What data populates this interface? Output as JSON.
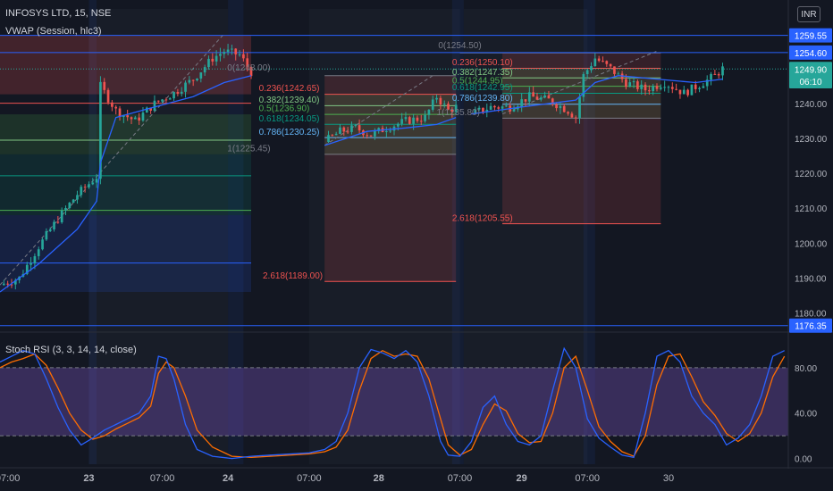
{
  "header": {
    "symbol_title": "INFOSYS LTD, 15, NSE",
    "vwap_label": "VWAP (Session, hlc3)",
    "currency": "INR"
  },
  "price_axis": {
    "ticks": [
      "1240.00",
      "1230.00",
      "1220.00",
      "1210.00",
      "1200.00",
      "1190.00",
      "1180.00"
    ],
    "badges": [
      {
        "text": "1259.55",
        "value": 1259.55,
        "color": "#2962ff",
        "text_color": "#ffffff"
      },
      {
        "text": "1254.60",
        "value": 1254.6,
        "color": "#2962ff",
        "text_color": "#ffffff"
      },
      {
        "text": "1249.90",
        "value": 1249.9,
        "color": "#26a69a",
        "text_color": "#ffffff"
      },
      {
        "text": "06:10",
        "value": 1246.4,
        "color": "#26a69a",
        "text_color": "#ffffff"
      },
      {
        "text": "1176.35",
        "value": 1176.35,
        "color": "#2962ff",
        "text_color": "#ffffff"
      }
    ]
  },
  "time_axis": {
    "labels": [
      {
        "text": "07:00",
        "bold": false
      },
      {
        "text": "23",
        "bold": true
      },
      {
        "text": "07:00",
        "bold": false
      },
      {
        "text": "24",
        "bold": true
      },
      {
        "text": "07:00",
        "bold": false
      },
      {
        "text": "28",
        "bold": true
      },
      {
        "text": "07:00",
        "bold": false
      },
      {
        "text": "29",
        "bold": true
      },
      {
        "text": "07:00",
        "bold": false
      },
      {
        "text": "30",
        "bold": false
      }
    ]
  },
  "horizontal_lines": [
    1259.55,
    1254.6,
    1176.35
  ],
  "fib_labels": [
    {
      "text": "0(1254.50)",
      "color": "#787b86"
    },
    {
      "text": "0(1248.00)",
      "color": "#787b86"
    },
    {
      "text": "0.236(1242.65)",
      "color": "#ef5350"
    },
    {
      "text": "0.382(1239.40)",
      "color": "#81c784"
    },
    {
      "text": "0.5(1236.90)",
      "color": "#4caf50"
    },
    {
      "text": "0.618(1234.05)",
      "color": "#089981"
    },
    {
      "text": "0.786(1230.25)",
      "color": "#64b5f6"
    },
    {
      "text": "1(1225.45)",
      "color": "#787b86"
    },
    {
      "text": "2.618(1189.00)",
      "color": "#ef5350"
    },
    {
      "text": "0.236(1250.10)",
      "color": "#ef5350"
    },
    {
      "text": "0.382(1247.35)",
      "color": "#81c784"
    },
    {
      "text": "0.5(1244.95)",
      "color": "#4caf50"
    },
    {
      "text": "0.618(1242.95)",
      "color": "#089981"
    },
    {
      "text": "0.786(1239.80)",
      "color": "#64b5f6"
    },
    {
      "text": "1(1235.80)",
      "color": "#787b86"
    },
    {
      "text": "2.618(1205.55)",
      "color": "#ef5350"
    }
  ],
  "stoch": {
    "label": "Stoch RSI (3, 3, 14, 14, close)",
    "ticks": [
      "80.00",
      "40.00",
      "0.00"
    ],
    "band": [
      20,
      80
    ]
  },
  "colors": {
    "background": "#131722",
    "up": "#26a69a",
    "down": "#ef5350",
    "vwap": "#2962ff",
    "stoch_k": "#2962ff",
    "stoch_d": "#ff6d00",
    "band_fill": "#7e57c2"
  },
  "chart_data": {
    "type": "candlestick",
    "title": "INFOSYS LTD, 15, NSE",
    "price_ylim": [
      1175,
      1262
    ],
    "stoch_ylim": [
      -5,
      105
    ],
    "segments": [
      {
        "points": [
          [
            0,
            1188
          ],
          [
            5,
            1190
          ],
          [
            10,
            1199
          ],
          [
            15,
            1207
          ],
          [
            20,
            1214
          ],
          [
            25,
            1219
          ],
          [
            26,
            1245
          ],
          [
            30,
            1238
          ],
          [
            35,
            1235
          ],
          [
            40,
            1240
          ],
          [
            45,
            1243
          ],
          [
            50,
            1247
          ],
          [
            55,
            1253
          ],
          [
            58,
            1255
          ],
          [
            62,
            1254
          ],
          [
            65,
            1249
          ]
        ],
        "vwap": [
          [
            0,
            1186
          ],
          [
            10,
            1194
          ],
          [
            20,
            1204
          ],
          [
            25,
            1212
          ],
          [
            26,
            1223
          ],
          [
            30,
            1236
          ],
          [
            40,
            1239
          ],
          [
            50,
            1242
          ],
          [
            58,
            1246
          ],
          [
            65,
            1248
          ]
        ]
      },
      {
        "points": [
          [
            84,
            1229
          ],
          [
            88,
            1232
          ],
          [
            92,
            1233
          ],
          [
            96,
            1231
          ],
          [
            100,
            1233
          ],
          [
            105,
            1235
          ],
          [
            110,
            1236
          ],
          [
            113,
            1242
          ],
          [
            116,
            1238
          ],
          [
            118,
            1239
          ]
        ],
        "vwap": [
          [
            84,
            1228
          ],
          [
            95,
            1232
          ],
          [
            105,
            1233
          ],
          [
            113,
            1234
          ],
          [
            118,
            1236
          ]
        ]
      },
      {
        "points": [
          [
            122,
            1237
          ],
          [
            127,
            1239
          ],
          [
            132,
            1239
          ],
          [
            137,
            1242
          ],
          [
            142,
            1241
          ],
          [
            147,
            1238
          ],
          [
            149,
            1236
          ],
          [
            151,
            1248
          ],
          [
            154,
            1253
          ],
          [
            158,
            1250
          ],
          [
            162,
            1246
          ],
          [
            167,
            1244
          ],
          [
            172,
            1246
          ],
          [
            177,
            1243
          ],
          [
            182,
            1246
          ],
          [
            185,
            1248
          ],
          [
            187,
            1250
          ]
        ],
        "vwap": [
          [
            122,
            1237
          ],
          [
            135,
            1239
          ],
          [
            149,
            1241
          ],
          [
            154,
            1246
          ],
          [
            160,
            1248
          ],
          [
            170,
            1247
          ],
          [
            180,
            1246
          ],
          [
            187,
            1247
          ]
        ]
      }
    ],
    "stoch_k": [
      [
        0,
        85
      ],
      [
        3,
        90
      ],
      [
        6,
        95
      ],
      [
        9,
        92
      ],
      [
        12,
        70
      ],
      [
        15,
        45
      ],
      [
        18,
        25
      ],
      [
        21,
        12
      ],
      [
        24,
        18
      ],
      [
        27,
        25
      ],
      [
        30,
        30
      ],
      [
        33,
        35
      ],
      [
        36,
        40
      ],
      [
        39,
        55
      ],
      [
        41,
        90
      ],
      [
        43,
        88
      ],
      [
        45,
        70
      ],
      [
        48,
        30
      ],
      [
        51,
        8
      ],
      [
        55,
        2
      ],
      [
        60,
        0
      ],
      [
        65,
        2
      ],
      [
        70,
        3
      ],
      [
        80,
        5
      ],
      [
        84,
        8
      ],
      [
        87,
        15
      ],
      [
        90,
        40
      ],
      [
        93,
        80
      ],
      [
        96,
        96
      ],
      [
        99,
        93
      ],
      [
        102,
        88
      ],
      [
        105,
        95
      ],
      [
        108,
        85
      ],
      [
        111,
        55
      ],
      [
        114,
        15
      ],
      [
        116,
        3
      ],
      [
        119,
        2
      ],
      [
        122,
        15
      ],
      [
        125,
        45
      ],
      [
        128,
        55
      ],
      [
        131,
        30
      ],
      [
        134,
        15
      ],
      [
        137,
        12
      ],
      [
        140,
        20
      ],
      [
        143,
        60
      ],
      [
        146,
        97
      ],
      [
        149,
        80
      ],
      [
        152,
        35
      ],
      [
        155,
        18
      ],
      [
        158,
        10
      ],
      [
        161,
        3
      ],
      [
        164,
        1
      ],
      [
        167,
        40
      ],
      [
        170,
        90
      ],
      [
        173,
        95
      ],
      [
        176,
        85
      ],
      [
        179,
        55
      ],
      [
        182,
        40
      ],
      [
        185,
        30
      ],
      [
        188,
        12
      ],
      [
        191,
        18
      ],
      [
        194,
        30
      ],
      [
        197,
        55
      ],
      [
        200,
        90
      ],
      [
        203,
        95
      ]
    ],
    "stoch_d": [
      [
        0,
        80
      ],
      [
        3,
        85
      ],
      [
        6,
        88
      ],
      [
        9,
        92
      ],
      [
        12,
        82
      ],
      [
        15,
        62
      ],
      [
        18,
        40
      ],
      [
        21,
        25
      ],
      [
        24,
        17
      ],
      [
        27,
        20
      ],
      [
        30,
        26
      ],
      [
        33,
        31
      ],
      [
        36,
        36
      ],
      [
        39,
        46
      ],
      [
        41,
        75
      ],
      [
        43,
        85
      ],
      [
        45,
        80
      ],
      [
        48,
        55
      ],
      [
        51,
        25
      ],
      [
        55,
        10
      ],
      [
        60,
        2
      ],
      [
        65,
        1
      ],
      [
        70,
        2
      ],
      [
        80,
        4
      ],
      [
        84,
        6
      ],
      [
        87,
        10
      ],
      [
        90,
        25
      ],
      [
        93,
        60
      ],
      [
        96,
        88
      ],
      [
        99,
        95
      ],
      [
        102,
        90
      ],
      [
        105,
        92
      ],
      [
        108,
        90
      ],
      [
        111,
        70
      ],
      [
        114,
        35
      ],
      [
        116,
        12
      ],
      [
        119,
        3
      ],
      [
        122,
        8
      ],
      [
        125,
        30
      ],
      [
        128,
        48
      ],
      [
        131,
        42
      ],
      [
        134,
        22
      ],
      [
        137,
        14
      ],
      [
        140,
        15
      ],
      [
        143,
        40
      ],
      [
        146,
        80
      ],
      [
        149,
        90
      ],
      [
        152,
        60
      ],
      [
        155,
        28
      ],
      [
        158,
        15
      ],
      [
        161,
        6
      ],
      [
        164,
        2
      ],
      [
        167,
        20
      ],
      [
        170,
        65
      ],
      [
        173,
        90
      ],
      [
        176,
        92
      ],
      [
        179,
        72
      ],
      [
        182,
        50
      ],
      [
        185,
        38
      ],
      [
        188,
        22
      ],
      [
        191,
        15
      ],
      [
        194,
        22
      ],
      [
        197,
        40
      ],
      [
        200,
        72
      ],
      [
        203,
        90
      ]
    ]
  }
}
